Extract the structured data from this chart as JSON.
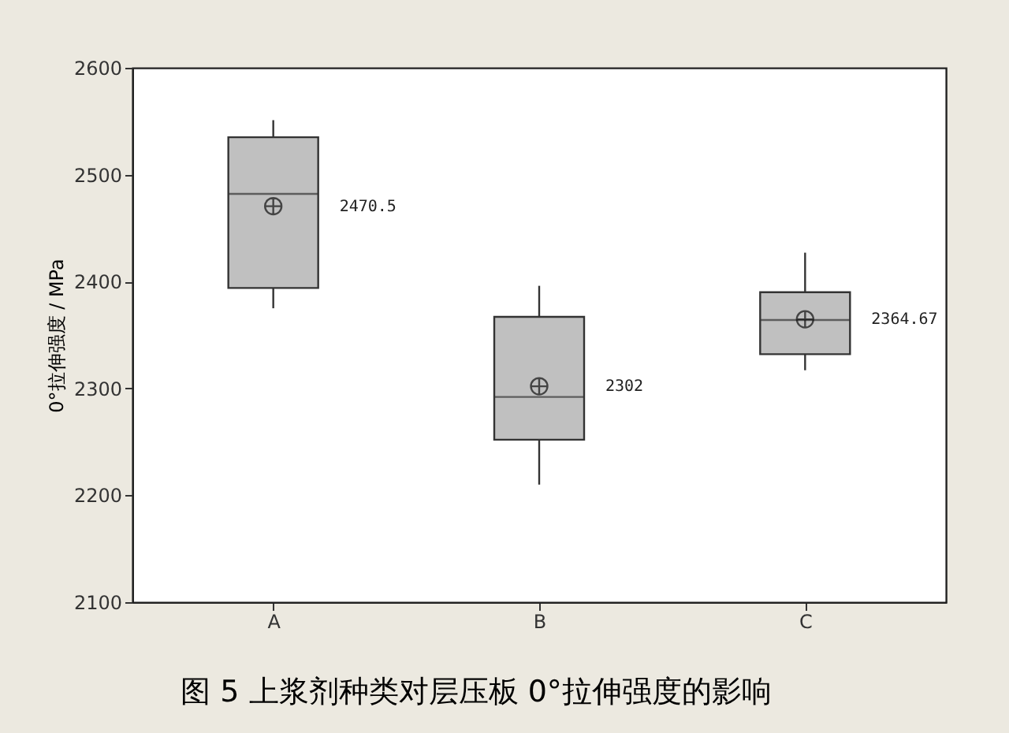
{
  "chart_data": {
    "type": "box",
    "ylabel": "0°拉伸强度 / MPa",
    "categories": [
      "A",
      "B",
      "C"
    ],
    "boxes": [
      {
        "low": 2375,
        "q1": 2394,
        "median": 2482,
        "q3": 2535,
        "high": 2551,
        "mean": 2470.5
      },
      {
        "low": 2210,
        "q1": 2252,
        "median": 2292,
        "q3": 2367,
        "high": 2396,
        "mean": 2302
      },
      {
        "low": 2317,
        "q1": 2332,
        "median": 2364,
        "q3": 2390,
        "high": 2427,
        "mean": 2364.67
      }
    ],
    "color": "#c0c0c0",
    "value_labels": [
      "2470.5",
      "2302",
      "2364.67"
    ],
    "ylim": [
      2100,
      2600
    ],
    "yticks": [
      2100,
      2200,
      2300,
      2400,
      2500,
      2600
    ],
    "grid": false,
    "annotations": [
      "图 5 上浆剂种类对层压板 0°拉伸强度的影响"
    ]
  }
}
